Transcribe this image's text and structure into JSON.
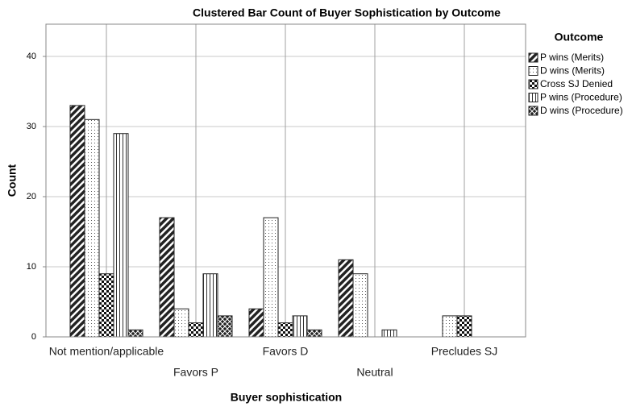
{
  "chart_data": {
    "type": "bar",
    "title": "Clustered Bar Count of Buyer Sophistication by Outcome",
    "x_label": "Buyer sophistication",
    "y_label": "Count",
    "legend_title": "Outcome",
    "categories": [
      "Not mention/applicable",
      "Favors P",
      "Favors D",
      "Neutral",
      "Precludes SJ"
    ],
    "series": [
      {
        "name": "P wins (Merits)",
        "color": "#222222",
        "pattern": "diagonal",
        "values": [
          33,
          17,
          4,
          11,
          0
        ]
      },
      {
        "name": "D wins (Merits)",
        "color": "#222222",
        "pattern": "dots",
        "values": [
          31,
          4,
          17,
          9,
          3
        ]
      },
      {
        "name": "Cross SJ Denied",
        "color": "#222222",
        "pattern": "checker",
        "values": [
          9,
          2,
          2,
          0,
          3
        ]
      },
      {
        "name": "P wins (Procedure)",
        "color": "#222222",
        "pattern": "vertical",
        "values": [
          29,
          9,
          3,
          1,
          0
        ]
      },
      {
        "name": "D wins (Procedure)",
        "color": "#222222",
        "pattern": "crosshatch",
        "values": [
          1,
          3,
          1,
          0,
          0
        ]
      }
    ],
    "ylim": [
      0,
      44.6
    ],
    "yticks": [
      0,
      10,
      20,
      30,
      40
    ],
    "grid": true,
    "legend": "right"
  }
}
